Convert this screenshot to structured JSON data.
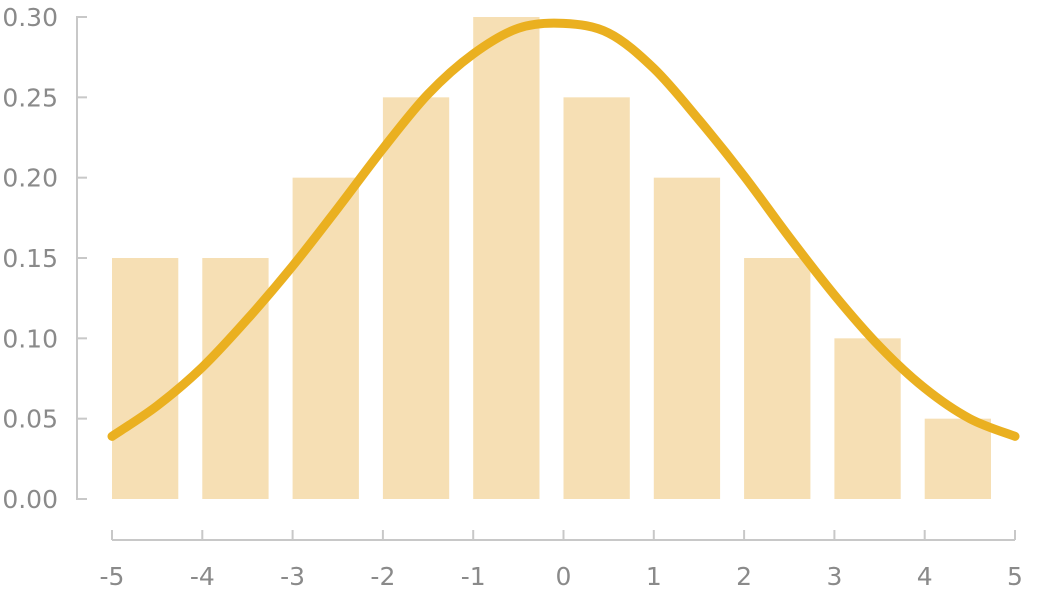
{
  "chart_data": {
    "type": "bar",
    "title": "",
    "xlabel": "",
    "ylabel": "",
    "x_ticks": [
      "-5",
      "-4",
      "-3",
      "-2",
      "-1",
      "0",
      "1",
      "2",
      "3",
      "4",
      "5"
    ],
    "y_ticks": [
      "0.00",
      "0.05",
      "0.10",
      "0.15",
      "0.20",
      "0.25",
      "0.30"
    ],
    "xlim": [
      -5,
      5
    ],
    "ylim": [
      0,
      0.3
    ],
    "grid": false,
    "bins": [
      {
        "start": -5,
        "end": -4,
        "value": 0.15
      },
      {
        "start": -4,
        "end": -3,
        "value": 0.15
      },
      {
        "start": -3,
        "end": -2,
        "value": 0.2
      },
      {
        "start": -2,
        "end": -1,
        "value": 0.25
      },
      {
        "start": -1,
        "end": 0,
        "value": 0.3
      },
      {
        "start": 0,
        "end": 1,
        "value": 0.25
      },
      {
        "start": 1,
        "end": 2,
        "value": 0.2
      },
      {
        "start": 2,
        "end": 3,
        "value": 0.15
      },
      {
        "start": 3,
        "end": 4,
        "value": 0.1
      },
      {
        "start": 4,
        "end": 5,
        "value": 0.05
      }
    ],
    "curve": {
      "type": "line",
      "x": [
        -5,
        -4.5,
        -4,
        -3.5,
        -3,
        -2.5,
        -2,
        -1.5,
        -1,
        -0.5,
        0,
        0.5,
        1,
        1.5,
        2,
        2.5,
        3,
        3.5,
        4,
        4.5,
        5
      ],
      "y": [
        0.039,
        0.058,
        0.082,
        0.112,
        0.145,
        0.181,
        0.218,
        0.252,
        0.277,
        0.293,
        0.296,
        0.29,
        0.268,
        0.236,
        0.201,
        0.163,
        0.127,
        0.095,
        0.069,
        0.05,
        0.039
      ]
    },
    "colors": {
      "bar": "#f6dfb4",
      "curve": "#eab020",
      "axis": "#c8c8c8",
      "tick_label": "#8a8a8a"
    }
  }
}
